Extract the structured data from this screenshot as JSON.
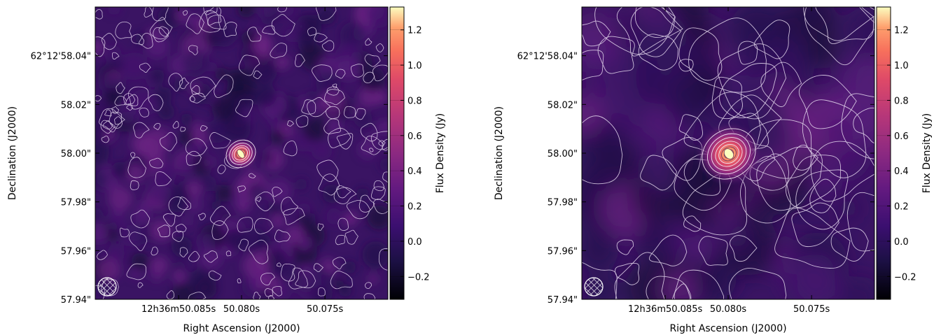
{
  "chart_data": [
    {
      "type": "heatmap",
      "panel": "left",
      "title": "",
      "xlabel": "Right Ascension (J2000)",
      "ylabel": "Declination (J2000)",
      "x_ticks": [
        "12h36m50.085s",
        "50.080s",
        "50.075s"
      ],
      "y_ticks": [
        "62°12'58.04\"",
        "58.02\"",
        "58.00\"",
        "57.98\"",
        "57.96\"",
        "57.94\""
      ],
      "y_tick_values": [
        58.04,
        58.02,
        58.0,
        57.98,
        57.96,
        57.94
      ],
      "ylim": [
        57.94,
        58.06
      ],
      "colorbar": {
        "label": "Flux Density (Jy)",
        "ticks": [
          "−0.2",
          "0.0",
          "0.2",
          "0.4",
          "0.6",
          "0.8",
          "1.0",
          "1.2"
        ],
        "tick_values": [
          -0.2,
          0.0,
          0.2,
          0.4,
          0.6,
          0.8,
          1.0,
          1.2
        ],
        "range": [
          -0.33,
          1.33
        ],
        "colormap": "magma"
      },
      "source": {
        "ra_position": 0.5,
        "dec": 58.0,
        "peak_flux": 1.3
      },
      "contours": "white, many noise contours",
      "beam": "hatched ellipse lower-left"
    },
    {
      "type": "heatmap",
      "panel": "right",
      "title": "",
      "xlabel": "Right Ascension (J2000)",
      "ylabel": "Declination (J2000)",
      "x_ticks": [
        "12h36m50.085s",
        "50.080s",
        "50.075s"
      ],
      "y_ticks": [
        "62°12'58.04\"",
        "58.02\"",
        "58.00\"",
        "57.98\"",
        "57.96\"",
        "57.94\""
      ],
      "y_tick_values": [
        58.04,
        58.02,
        58.0,
        57.98,
        57.96,
        57.94
      ],
      "ylim": [
        57.94,
        58.06
      ],
      "colorbar": {
        "label": "Flux Density (Jy)",
        "ticks": [
          "−0.2",
          "0.0",
          "0.2",
          "0.4",
          "0.6",
          "0.8",
          "1.0",
          "1.2"
        ],
        "tick_values": [
          -0.2,
          0.0,
          0.2,
          0.4,
          0.6,
          0.8,
          1.0,
          1.2
        ],
        "range": [
          -0.33,
          1.33
        ],
        "colormap": "magma"
      },
      "source": {
        "ra_position": 0.5,
        "dec": 58.0,
        "peak_flux": 1.3
      },
      "contours": "white, smoother large-scale contours",
      "beam": "hatched ellipse lower-left"
    }
  ],
  "colors": {
    "background_low": "#2a0f4e",
    "background_mid": "#3b1464",
    "contour": "#e8dcf0"
  }
}
